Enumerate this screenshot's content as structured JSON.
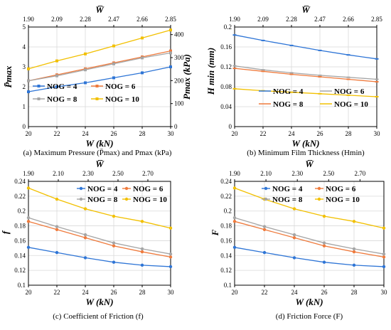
{
  "chart_data": [
    {
      "type": "line",
      "caption": "(a) Maximum Pressure (P̄max) and Pmax (kPa)",
      "xlabel": "W (kN)",
      "ylabel": "P̄max",
      "ylabel_right": "Pmax (kPa)",
      "top_xlabel": "W̅",
      "x": [
        20,
        22,
        24,
        26,
        28,
        30
      ],
      "xlim": [
        20,
        30
      ],
      "xticks": [
        "20",
        "22",
        "24",
        "26",
        "28",
        "30"
      ],
      "top_ticks": [
        "1.90",
        "2.09",
        "2.28",
        "2.47",
        "2.66",
        "2.85"
      ],
      "ylim": [
        0,
        5
      ],
      "yticks": [
        "0",
        "1",
        "2",
        "3",
        "4",
        "5"
      ],
      "ylim_right": [
        0,
        433
      ],
      "yticks_right": [
        {
          "value": 0,
          "label": "0"
        },
        {
          "value": 100,
          "label": "100"
        },
        {
          "value": 200,
          "label": "200"
        },
        {
          "value": 300,
          "label": "300"
        },
        {
          "value": 400,
          "label": "400"
        }
      ],
      "legend": "center-right, 2 columns",
      "series": [
        {
          "name": "NOG = 4",
          "color": "#2e75d6",
          "values": [
            1.75,
            2.0,
            2.2,
            2.45,
            2.7,
            3.0
          ]
        },
        {
          "name": "NOG = 6",
          "color": "#ef7a3c",
          "values": [
            2.3,
            2.6,
            2.9,
            3.2,
            3.5,
            3.8
          ]
        },
        {
          "name": "NOG = 8",
          "color": "#a5a5a5",
          "values": [
            2.3,
            2.55,
            2.85,
            3.15,
            3.45,
            3.7
          ]
        },
        {
          "name": "NOG = 10",
          "color": "#f2c000",
          "values": [
            2.9,
            3.3,
            3.65,
            4.05,
            4.45,
            4.85
          ]
        }
      ],
      "marker": "square"
    },
    {
      "type": "line",
      "caption": "(b) Minimum Film Thickness (Hmin)",
      "xlabel": "W (kN)",
      "ylabel": "H min (mm)",
      "top_xlabel": "W̅",
      "x": [
        20,
        22,
        24,
        26,
        28,
        30
      ],
      "xlim": [
        20,
        30
      ],
      "xticks": [
        "20",
        "22",
        "24",
        "26",
        "28",
        "30"
      ],
      "top_ticks": [
        "1.90",
        "2.09",
        "2.28",
        "2.47",
        "2.66",
        "2.85"
      ],
      "ylim": [
        0,
        0.2
      ],
      "yticks": [
        "0",
        "0.04",
        "0.08",
        "0.12",
        "0.16",
        "0.2"
      ],
      "legend": "center-right, 2 columns",
      "series": [
        {
          "name": "NOG = 4",
          "color": "#2e75d6",
          "values": [
            0.184,
            0.173,
            0.163,
            0.153,
            0.144,
            0.136
          ]
        },
        {
          "name": "NOG = 6",
          "color": "#a5a5a5",
          "values": [
            0.122,
            0.114,
            0.108,
            0.103,
            0.099,
            0.095
          ]
        },
        {
          "name": "NOG = 8",
          "color": "#ef7a3c",
          "values": [
            0.117,
            0.111,
            0.105,
            0.1,
            0.095,
            0.09
          ]
        },
        {
          "name": "NOG = 10",
          "color": "#f2c000",
          "values": [
            0.076,
            0.072,
            0.069,
            0.066,
            0.063,
            0.06
          ]
        }
      ],
      "marker": "dash"
    },
    {
      "type": "line",
      "caption": "(c) Coefficient of Friction (f)",
      "xlabel": "W (kN)",
      "ylabel": "f",
      "top_xlabel": "W̅",
      "x": [
        20,
        22,
        24,
        26,
        28,
        30
      ],
      "xlim": [
        20,
        30
      ],
      "xticks": [
        "20",
        "22",
        "24",
        "26",
        "28",
        "30"
      ],
      "top_ticks": [
        "1.90",
        "2.10",
        "2.30",
        "2.50",
        "2.70"
      ],
      "top_ticks_x": [
        20,
        22.1,
        24.2,
        26.3,
        28.4
      ],
      "ylim": [
        0.1,
        0.24
      ],
      "yticks": [
        "0.1",
        "0.12",
        "0.14",
        "0.16",
        "0.18",
        "0.2",
        "0.22",
        "0.24"
      ],
      "legend": "top-right, 2 columns",
      "series": [
        {
          "name": "NOG = 4",
          "color": "#2e75d6",
          "values": [
            0.151,
            0.144,
            0.137,
            0.131,
            0.127,
            0.125
          ]
        },
        {
          "name": "NOG = 6",
          "color": "#ef7a3c",
          "values": [
            0.186,
            0.175,
            0.164,
            0.153,
            0.145,
            0.138
          ]
        },
        {
          "name": "NOG = 8",
          "color": "#a5a5a5",
          "values": [
            0.191,
            0.179,
            0.168,
            0.157,
            0.149,
            0.142
          ]
        },
        {
          "name": "NOG = 10",
          "color": "#f2c000",
          "values": [
            0.231,
            0.216,
            0.203,
            0.193,
            0.186,
            0.177
          ]
        }
      ],
      "marker": "circle"
    },
    {
      "type": "line",
      "caption": "(d) Friction Force (F)",
      "xlabel": "W (kN)",
      "ylabel": "F",
      "top_xlabel": "W̅",
      "x": [
        20,
        22,
        24,
        26,
        28,
        30
      ],
      "xlim": [
        20,
        30
      ],
      "xticks": [
        "20",
        "22",
        "24",
        "26",
        "28",
        "30"
      ],
      "top_ticks": [
        "1.90",
        "2.10",
        "2.30",
        "2.50",
        "2.70"
      ],
      "top_ticks_x": [
        20,
        22.1,
        24.2,
        26.3,
        28.4
      ],
      "ylim": [
        0.1,
        0.24
      ],
      "yticks": [
        "0.1",
        "0.12",
        "0.14",
        "0.16",
        "0.18",
        "0.2",
        "0.22",
        "0.24"
      ],
      "legend": "top-right, 2 columns",
      "series": [
        {
          "name": "NOG = 4",
          "color": "#2e75d6",
          "values": [
            0.151,
            0.144,
            0.137,
            0.131,
            0.127,
            0.125
          ]
        },
        {
          "name": "NOG = 6",
          "color": "#ef7a3c",
          "values": [
            0.186,
            0.175,
            0.164,
            0.153,
            0.145,
            0.138
          ]
        },
        {
          "name": "NOG = 8",
          "color": "#a5a5a5",
          "values": [
            0.191,
            0.179,
            0.168,
            0.157,
            0.149,
            0.142
          ]
        },
        {
          "name": "NOG = 10",
          "color": "#f2c000",
          "values": [
            0.231,
            0.216,
            0.203,
            0.193,
            0.186,
            0.177
          ]
        }
      ],
      "marker": "circle"
    }
  ]
}
